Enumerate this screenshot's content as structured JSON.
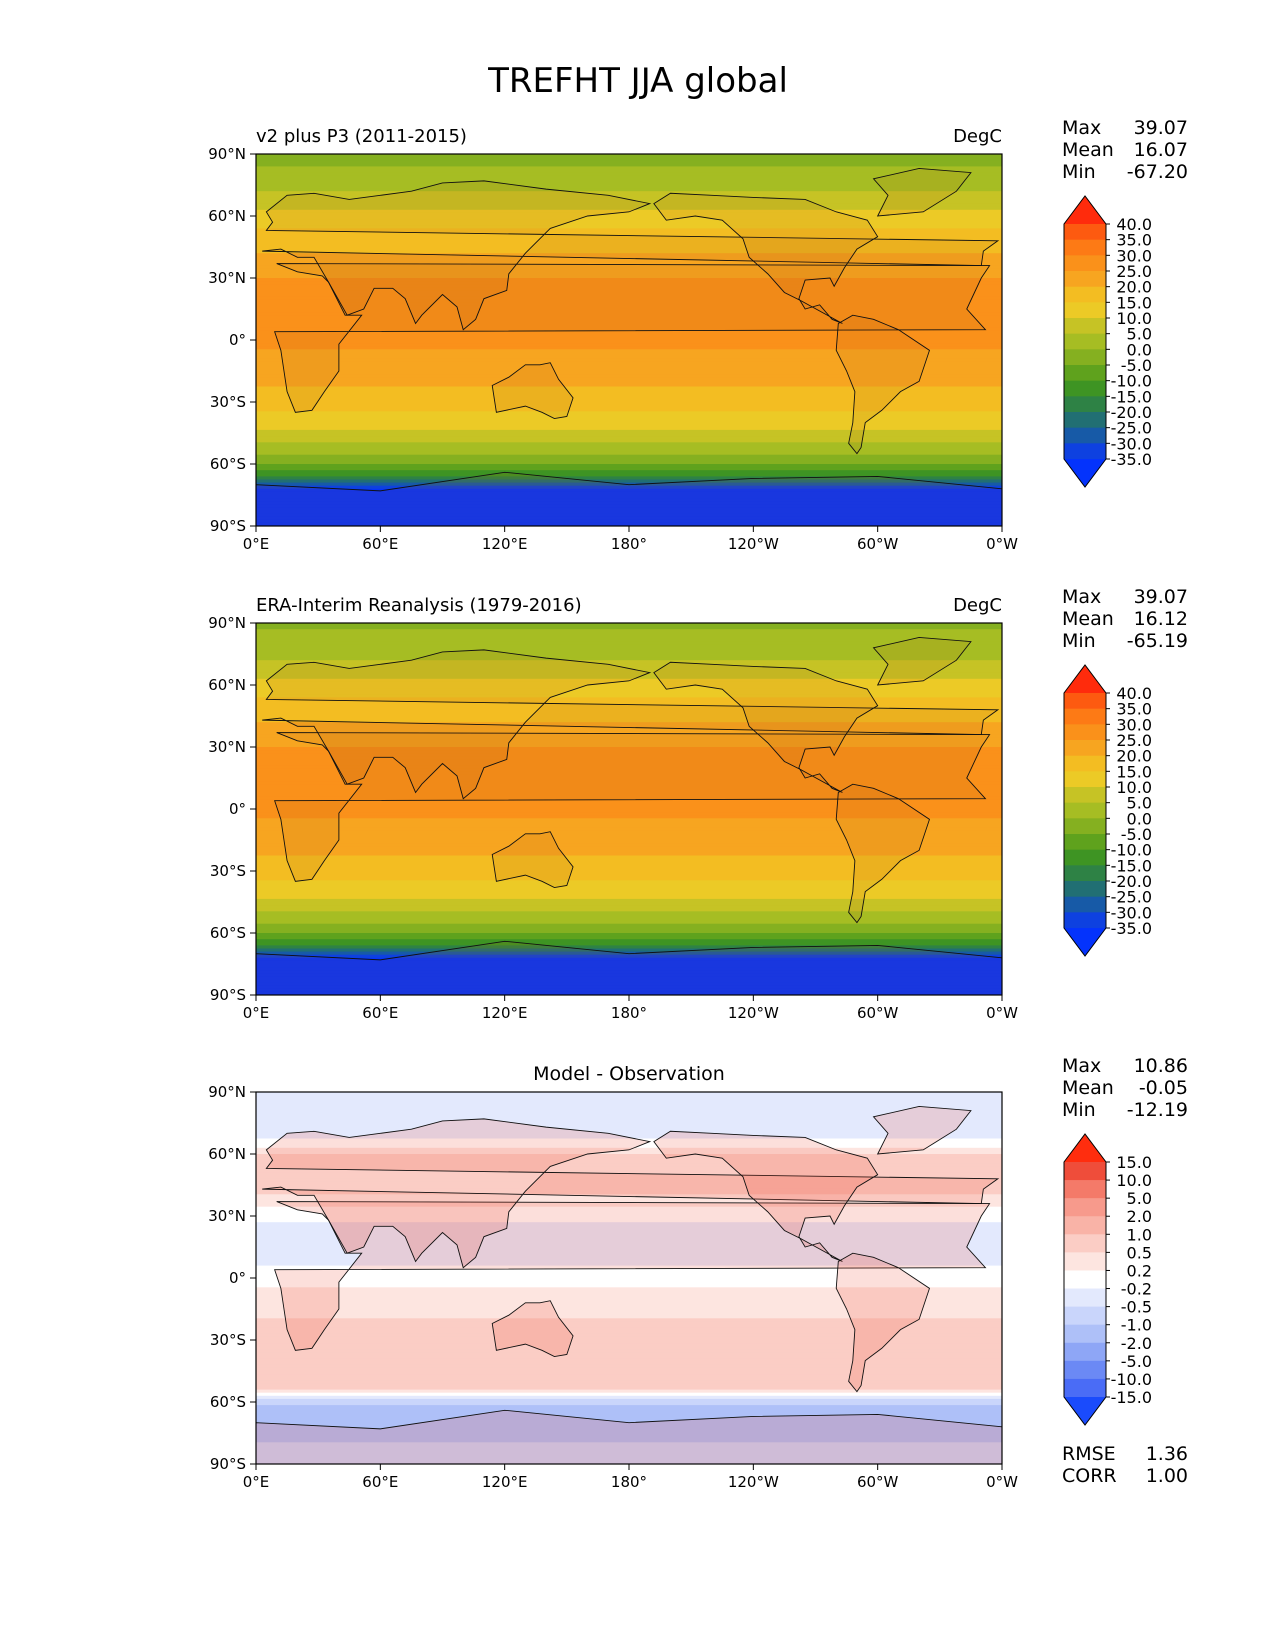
{
  "figure": {
    "title": "TREFHT JJA global"
  },
  "x_ticks": [
    "0°E",
    "60°E",
    "120°E",
    "180°",
    "120°W",
    "60°W",
    "0°W"
  ],
  "y_ticks": [
    "90°N",
    "60°N",
    "30°N",
    "0°",
    "30°S",
    "60°S",
    "90°S"
  ],
  "panels": [
    {
      "id": "test",
      "title_left": "v2 plus P3 (2011-2015)",
      "title_right": "DegC",
      "title_center": "",
      "stats": [
        {
          "label": "Max",
          "value": "39.07"
        },
        {
          "label": "Mean",
          "value": "16.07"
        },
        {
          "label": "Min",
          "value": "-67.20"
        }
      ],
      "footer_stats": [],
      "colorbar": {
        "labels": [
          "40.0",
          "35.0",
          "30.0",
          "25.0",
          "20.0",
          "15.0",
          "10.0",
          "5.0",
          "0.0",
          "-5.0",
          "-10.0",
          "-15.0",
          "-20.0",
          "-25.0",
          "-30.0",
          "-35.0"
        ],
        "colors": [
          "#ff2b0c",
          "#fd5a10",
          "#fd7a15",
          "#fa911a",
          "#f7a520",
          "#f3bd22",
          "#ecca26",
          "#c6c325",
          "#a6bd23",
          "#85b020",
          "#5fa21d",
          "#3e9423",
          "#2e8245",
          "#216f73",
          "#175aa7",
          "#0e41e0",
          "#0433fc"
        ]
      }
    },
    {
      "id": "reference",
      "title_left": "ERA-Interim Reanalysis (1979-2016)",
      "title_right": "DegC",
      "title_center": "",
      "stats": [
        {
          "label": "Max",
          "value": "39.07"
        },
        {
          "label": "Mean",
          "value": "16.12"
        },
        {
          "label": "Min",
          "value": "-65.19"
        }
      ],
      "footer_stats": [],
      "colorbar": {
        "labels": [
          "40.0",
          "35.0",
          "30.0",
          "25.0",
          "20.0",
          "15.0",
          "10.0",
          "5.0",
          "0.0",
          "-5.0",
          "-10.0",
          "-15.0",
          "-20.0",
          "-25.0",
          "-30.0",
          "-35.0"
        ],
        "colors": [
          "#ff2b0c",
          "#fd5a10",
          "#fd7a15",
          "#fa911a",
          "#f7a520",
          "#f3bd22",
          "#ecca26",
          "#c6c325",
          "#a6bd23",
          "#85b020",
          "#5fa21d",
          "#3e9423",
          "#2e8245",
          "#216f73",
          "#175aa7",
          "#0e41e0",
          "#0433fc"
        ]
      }
    },
    {
      "id": "difference",
      "title_left": "",
      "title_right": "",
      "title_center": "Model - Observation",
      "stats": [
        {
          "label": "Max",
          "value": "10.86"
        },
        {
          "label": "Mean",
          "value": "-0.05"
        },
        {
          "label": "Min",
          "value": "-12.19"
        }
      ],
      "footer_stats": [
        {
          "label": "RMSE",
          "value": "1.36"
        },
        {
          "label": "CORR",
          "value": "1.00"
        }
      ],
      "colorbar": {
        "labels": [
          "15.0",
          "10.0",
          "5.0",
          "2.0",
          "1.0",
          "0.5",
          "0.2",
          "-0.2",
          "-0.5",
          "-1.0",
          "-2.0",
          "-5.0",
          "-10.0",
          "-15.0"
        ],
        "colors": [
          "#ff2d0e",
          "#ef4d3a",
          "#f47a69",
          "#f79a8c",
          "#f9b3a7",
          "#fbcdc5",
          "#fde5e0",
          "#ffffff",
          "#e3e9fd",
          "#c9d5fb",
          "#aec0f8",
          "#8ea6f6",
          "#6b89f5",
          "#4a6cf6",
          "#1a4bfc"
        ]
      }
    }
  ],
  "chart_data": {
    "type": "heatmap",
    "title": "TREFHT JJA global",
    "variable": "TREFHT",
    "season": "JJA",
    "region": "global",
    "units": "DegC",
    "xlim": [
      0,
      360
    ],
    "ylim": [
      -90,
      90
    ],
    "x_tick_values": [
      0,
      60,
      120,
      180,
      240,
      300,
      360
    ],
    "y_tick_values": [
      90,
      60,
      30,
      0,
      -30,
      -60,
      -90
    ],
    "panels": [
      {
        "name": "v2 plus P3 (2011-2015)",
        "units": "DegC",
        "max": 39.07,
        "mean": 16.07,
        "min": -67.2,
        "contour_levels": [
          -35,
          -30,
          -25,
          -20,
          -15,
          -10,
          -5,
          0,
          5,
          10,
          15,
          20,
          25,
          30,
          35,
          40
        ],
        "zonal_profile": [
          {
            "lat": 90,
            "value": -2
          },
          {
            "lat": 75,
            "value": 3
          },
          {
            "lat": 60,
            "value": 12
          },
          {
            "lat": 45,
            "value": 19
          },
          {
            "lat": 30,
            "value": 25
          },
          {
            "lat": 15,
            "value": 27
          },
          {
            "lat": 0,
            "value": 26
          },
          {
            "lat": -15,
            "value": 23
          },
          {
            "lat": -30,
            "value": 17
          },
          {
            "lat": -45,
            "value": 9
          },
          {
            "lat": -55,
            "value": 1
          },
          {
            "lat": -62,
            "value": -8
          },
          {
            "lat": -68,
            "value": -20
          },
          {
            "lat": -72,
            "value": -35
          },
          {
            "lat": -90,
            "value": -55
          }
        ]
      },
      {
        "name": "ERA-Interim Reanalysis (1979-2016)",
        "units": "DegC",
        "max": 39.07,
        "mean": 16.12,
        "min": -65.19,
        "contour_levels": [
          -35,
          -30,
          -25,
          -20,
          -15,
          -10,
          -5,
          0,
          5,
          10,
          15,
          20,
          25,
          30,
          35,
          40
        ],
        "zonal_profile": [
          {
            "lat": 90,
            "value": -1
          },
          {
            "lat": 75,
            "value": 3
          },
          {
            "lat": 60,
            "value": 12
          },
          {
            "lat": 45,
            "value": 19
          },
          {
            "lat": 30,
            "value": 25
          },
          {
            "lat": 15,
            "value": 27
          },
          {
            "lat": 0,
            "value": 26
          },
          {
            "lat": -15,
            "value": 23
          },
          {
            "lat": -30,
            "value": 17
          },
          {
            "lat": -45,
            "value": 9
          },
          {
            "lat": -55,
            "value": 1
          },
          {
            "lat": -62,
            "value": -8
          },
          {
            "lat": -68,
            "value": -20
          },
          {
            "lat": -72,
            "value": -35
          },
          {
            "lat": -90,
            "value": -55
          }
        ]
      },
      {
        "name": "Model - Observation",
        "units": "DegC",
        "max": 10.86,
        "mean": -0.05,
        "min": -12.19,
        "rmse": 1.36,
        "corr": 1.0,
        "contour_levels": [
          -15,
          -10,
          -5,
          -2,
          -1,
          -0.5,
          -0.2,
          0.2,
          0.5,
          1,
          2,
          5,
          10,
          15
        ],
        "zonal_profile": [
          {
            "lat": 85,
            "value": -0.3
          },
          {
            "lat": 70,
            "value": -0.5
          },
          {
            "lat": 55,
            "value": 1.0
          },
          {
            "lat": 40,
            "value": 0.5
          },
          {
            "lat": 25,
            "value": -0.3
          },
          {
            "lat": 10,
            "value": -0.4
          },
          {
            "lat": 0,
            "value": 0.1
          },
          {
            "lat": -10,
            "value": 0.3
          },
          {
            "lat": -25,
            "value": 0.6
          },
          {
            "lat": -40,
            "value": 0.6
          },
          {
            "lat": -52,
            "value": 0.8
          },
          {
            "lat": -62,
            "value": -1.0
          },
          {
            "lat": -70,
            "value": -2.0
          },
          {
            "lat": -80,
            "value": -1.0
          },
          {
            "lat": -90,
            "value": -0.5
          }
        ]
      }
    ]
  }
}
